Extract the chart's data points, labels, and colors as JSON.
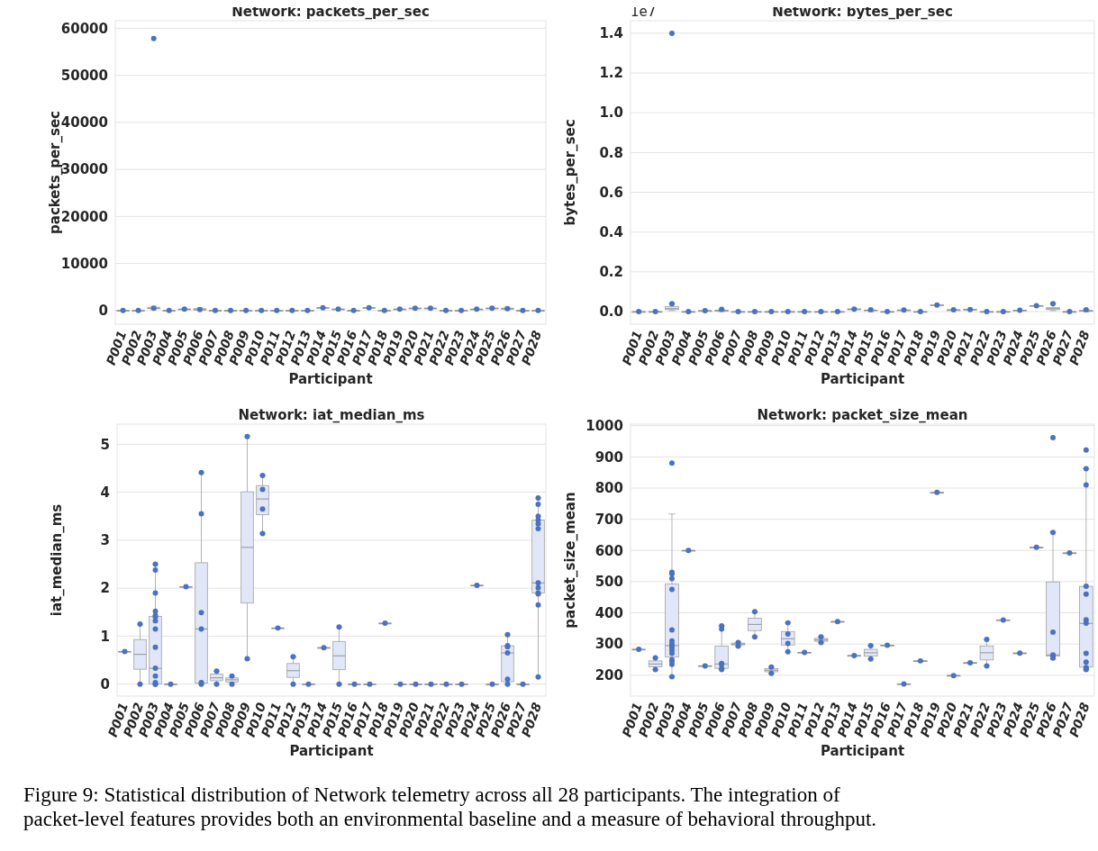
{
  "chart_data": [
    {
      "type": "box",
      "title": "Network: packets_per_sec",
      "xlabel": "Participant",
      "ylabel": "packets_per_sec",
      "categories": [
        "P001",
        "P002",
        "P003",
        "P004",
        "P005",
        "P006",
        "P007",
        "P008",
        "P009",
        "P010",
        "P011",
        "P012",
        "P013",
        "P014",
        "P015",
        "P016",
        "P017",
        "P018",
        "P019",
        "P020",
        "P021",
        "P022",
        "P023",
        "P024",
        "P025",
        "P026",
        "P027",
        "P028"
      ],
      "ylim": [
        -2900,
        61600
      ],
      "yticks": [
        0,
        10000,
        20000,
        30000,
        40000,
        50000,
        60000
      ],
      "grid": "y",
      "color": "#e1e7f8",
      "boxes": [
        {
          "low": 0,
          "q1": 0,
          "median": 0,
          "q3": 0,
          "high": 0
        },
        {
          "low": 0,
          "q1": 0,
          "median": 0,
          "q3": 0,
          "high": 0
        },
        {
          "low": 200,
          "q1": 400,
          "median": 500,
          "q3": 700,
          "high": 900
        },
        {
          "low": 0,
          "q1": 0,
          "median": 0,
          "q3": 0,
          "high": 0
        },
        {
          "low": 300,
          "q1": 300,
          "median": 300,
          "q3": 300,
          "high": 300
        },
        {
          "low": 0,
          "q1": 100,
          "median": 200,
          "q3": 400,
          "high": 600
        },
        {
          "low": 0,
          "q1": 0,
          "median": 0,
          "q3": 0,
          "high": 0
        },
        {
          "low": 0,
          "q1": 0,
          "median": 0,
          "q3": 0,
          "high": 0
        },
        {
          "low": 0,
          "q1": 0,
          "median": 0,
          "q3": 0,
          "high": 0
        },
        {
          "low": 0,
          "q1": 0,
          "median": 0,
          "q3": 0,
          "high": 0
        },
        {
          "low": 0,
          "q1": 0,
          "median": 0,
          "q3": 0,
          "high": 0
        },
        {
          "low": 0,
          "q1": 0,
          "median": 0,
          "q3": 0,
          "high": 0
        },
        {
          "low": 0,
          "q1": 0,
          "median": 0,
          "q3": 0,
          "high": 0
        },
        {
          "low": 600,
          "q1": 600,
          "median": 600,
          "q3": 600,
          "high": 600
        },
        {
          "low": 300,
          "q1": 300,
          "median": 300,
          "q3": 300,
          "high": 300
        },
        {
          "low": 0,
          "q1": 0,
          "median": 0,
          "q3": 0,
          "high": 0
        },
        {
          "low": 600,
          "q1": 600,
          "median": 600,
          "q3": 600,
          "high": 600
        },
        {
          "low": 0,
          "q1": 0,
          "median": 0,
          "q3": 0,
          "high": 0
        },
        {
          "low": 300,
          "q1": 300,
          "median": 300,
          "q3": 300,
          "high": 300
        },
        {
          "low": 500,
          "q1": 500,
          "median": 500,
          "q3": 500,
          "high": 500
        },
        {
          "low": 500,
          "q1": 500,
          "median": 500,
          "q3": 500,
          "high": 500
        },
        {
          "low": 0,
          "q1": 0,
          "median": 0,
          "q3": 0,
          "high": 0
        },
        {
          "low": 0,
          "q1": 0,
          "median": 0,
          "q3": 0,
          "high": 0
        },
        {
          "low": 300,
          "q1": 300,
          "median": 300,
          "q3": 300,
          "high": 300
        },
        {
          "low": 500,
          "q1": 500,
          "median": 500,
          "q3": 500,
          "high": 500
        },
        {
          "low": 100,
          "q1": 300,
          "median": 400,
          "q3": 500,
          "high": 700
        },
        {
          "low": 0,
          "q1": 0,
          "median": 0,
          "q3": 0,
          "high": 0
        },
        {
          "low": 0,
          "q1": 0,
          "median": 0,
          "q3": 0,
          "high": 0
        }
      ],
      "series": [
        {
          "type": "scatter",
          "color": "#4a72c0",
          "x": [
            "P001",
            "P002",
            "P003",
            "P003",
            "P004",
            "P005",
            "P006",
            "P007",
            "P008",
            "P009",
            "P010",
            "P011",
            "P012",
            "P013",
            "P014",
            "P015",
            "P016",
            "P017",
            "P018",
            "P019",
            "P020",
            "P021",
            "P022",
            "P023",
            "P024",
            "P025",
            "P026",
            "P027",
            "P028"
          ],
          "values": [
            0,
            0,
            57800,
            500,
            0,
            300,
            200,
            0,
            0,
            0,
            0,
            0,
            0,
            0,
            600,
            300,
            0,
            600,
            0,
            300,
            500,
            500,
            0,
            0,
            300,
            500,
            400,
            0,
            0
          ]
        }
      ]
    },
    {
      "type": "box",
      "title": "Network: bytes_per_sec",
      "xlabel": "Participant",
      "ylabel": "bytes_per_sec",
      "annotations": [
        "1e7"
      ],
      "categories": [
        "P001",
        "P002",
        "P003",
        "P004",
        "P005",
        "P006",
        "P007",
        "P008",
        "P009",
        "P010",
        "P011",
        "P012",
        "P013",
        "P014",
        "P015",
        "P016",
        "P017",
        "P018",
        "P019",
        "P020",
        "P021",
        "P022",
        "P023",
        "P024",
        "P025",
        "P026",
        "P027",
        "P028"
      ],
      "ylim": [
        -0.063,
        1.463
      ],
      "yticks": [
        {
          "value": 0,
          "label": "0.0"
        },
        {
          "value": 0.2,
          "label": "0.2"
        },
        {
          "value": 0.4,
          "label": "0.4"
        },
        {
          "value": 0.6,
          "label": "0.6"
        },
        {
          "value": 0.8,
          "label": "0.8"
        },
        {
          "value": 1,
          "label": "1.0"
        },
        {
          "value": 1.2,
          "label": "1.2"
        },
        {
          "value": 1.4,
          "label": "1.4"
        }
      ],
      "grid": "y",
      "color": "#e1e7f8",
      "boxes": [
        {
          "low": 0,
          "q1": 0,
          "median": 0,
          "q3": 0,
          "high": 0
        },
        {
          "low": 0,
          "q1": 0,
          "median": 0,
          "q3": 0,
          "high": 0
        },
        {
          "low": 0.005,
          "q1": 0.01,
          "median": 0.015,
          "q3": 0.025,
          "high": 0.04
        },
        {
          "low": 0,
          "q1": 0,
          "median": 0,
          "q3": 0,
          "high": 0
        },
        {
          "low": 0.005,
          "q1": 0.005,
          "median": 0.005,
          "q3": 0.005,
          "high": 0.005
        },
        {
          "low": 0,
          "q1": 0.003,
          "median": 0.005,
          "q3": 0.007,
          "high": 0.012
        },
        {
          "low": 0,
          "q1": 0,
          "median": 0,
          "q3": 0,
          "high": 0
        },
        {
          "low": 0,
          "q1": 0,
          "median": 0,
          "q3": 0,
          "high": 0
        },
        {
          "low": 0,
          "q1": 0,
          "median": 0,
          "q3": 0,
          "high": 0
        },
        {
          "low": 0,
          "q1": 0,
          "median": 0,
          "q3": 0,
          "high": 0
        },
        {
          "low": 0,
          "q1": 0,
          "median": 0,
          "q3": 0,
          "high": 0
        },
        {
          "low": 0,
          "q1": 0,
          "median": 0,
          "q3": 0,
          "high": 0
        },
        {
          "low": 0,
          "q1": 0,
          "median": 0,
          "q3": 0,
          "high": 0
        },
        {
          "low": 0.013,
          "q1": 0.013,
          "median": 0.013,
          "q3": 0.013,
          "high": 0.013
        },
        {
          "low": 0,
          "q1": 0.005,
          "median": 0.007,
          "q3": 0.008,
          "high": 0.01
        },
        {
          "low": 0,
          "q1": 0,
          "median": 0,
          "q3": 0,
          "high": 0
        },
        {
          "low": 0.008,
          "q1": 0.008,
          "median": 0.008,
          "q3": 0.008,
          "high": 0.008
        },
        {
          "low": 0,
          "q1": 0,
          "median": 0,
          "q3": 0,
          "high": 0
        },
        {
          "low": 0.033,
          "q1": 0.033,
          "median": 0.033,
          "q3": 0.033,
          "high": 0.033
        },
        {
          "low": 0.009,
          "q1": 0.009,
          "median": 0.009,
          "q3": 0.009,
          "high": 0.009
        },
        {
          "low": 0.011,
          "q1": 0.011,
          "median": 0.011,
          "q3": 0.011,
          "high": 0.011
        },
        {
          "low": 0,
          "q1": 0,
          "median": 0,
          "q3": 0,
          "high": 0
        },
        {
          "low": 0,
          "q1": 0,
          "median": 0,
          "q3": 0,
          "high": 0
        },
        {
          "low": 0.007,
          "q1": 0.007,
          "median": 0.007,
          "q3": 0.007,
          "high": 0.007
        },
        {
          "low": 0.03,
          "q1": 0.03,
          "median": 0.03,
          "q3": 0.03,
          "high": 0.03
        },
        {
          "low": 0.005,
          "q1": 0.01,
          "median": 0.015,
          "q3": 0.02,
          "high": 0.04
        },
        {
          "low": 0,
          "q1": 0,
          "median": 0,
          "q3": 0,
          "high": 0
        },
        {
          "low": 0,
          "q1": 0.002,
          "median": 0.004,
          "q3": 0.006,
          "high": 0.01
        }
      ],
      "series": [
        {
          "type": "scatter",
          "color": "#4a72c0",
          "x": [
            "P001",
            "P002",
            "P003",
            "P003",
            "P004",
            "P005",
            "P006",
            "P007",
            "P008",
            "P009",
            "P010",
            "P011",
            "P012",
            "P013",
            "P014",
            "P015",
            "P016",
            "P017",
            "P018",
            "P019",
            "P020",
            "P021",
            "P022",
            "P023",
            "P024",
            "P025",
            "P026",
            "P027",
            "P028"
          ],
          "values": [
            0,
            0,
            1.4,
            0.04,
            0,
            0.005,
            0.012,
            0,
            0,
            0,
            0,
            0,
            0,
            0,
            0.013,
            0.01,
            0,
            0.008,
            0,
            0.033,
            0.009,
            0.011,
            0,
            0,
            0.007,
            0.03,
            0.04,
            0,
            0.01
          ]
        }
      ]
    },
    {
      "type": "box",
      "title": "Network: iat_median_ms",
      "xlabel": "Participant",
      "ylabel": "iat_median_ms",
      "categories": [
        "P001",
        "P002",
        "P003",
        "P004",
        "P005",
        "P006",
        "P007",
        "P008",
        "P009",
        "P010",
        "P011",
        "P012",
        "P013",
        "P014",
        "P015",
        "P016",
        "P017",
        "P018",
        "P019",
        "P020",
        "P021",
        "P022",
        "P023",
        "P024",
        "P025",
        "P026",
        "P027",
        "P028"
      ],
      "ylim": [
        -0.25,
        5.42
      ],
      "yticks": [
        0,
        1,
        2,
        3,
        4,
        5
      ],
      "grid": "y",
      "color": "#e1e7f8",
      "boxes": [
        {
          "low": 0.68,
          "q1": 0.68,
          "median": 0.68,
          "q3": 0.68,
          "high": 0.68
        },
        {
          "low": 0,
          "q1": 0.31,
          "median": 0.62,
          "q3": 0.93,
          "high": 1.25
        },
        {
          "low": 0,
          "q1": 0,
          "median": 0.33,
          "q3": 1.41,
          "high": 2.5
        },
        {
          "low": 0,
          "q1": 0,
          "median": 0,
          "q3": 0,
          "high": 0
        },
        {
          "low": 2.03,
          "q1": 2.03,
          "median": 2.03,
          "q3": 2.03,
          "high": 2.03
        },
        {
          "low": 0,
          "q1": 0.02,
          "median": 1.15,
          "q3": 2.53,
          "high": 4.41
        },
        {
          "low": 0,
          "q1": 0.07,
          "median": 0.13,
          "q3": 0.21,
          "high": 0.27
        },
        {
          "low": 0,
          "q1": 0.04,
          "median": 0.09,
          "q3": 0.13,
          "high": 0.17
        },
        {
          "low": 0.53,
          "q1": 1.69,
          "median": 2.85,
          "q3": 4.01,
          "high": 5.16
        },
        {
          "low": 3.14,
          "q1": 3.53,
          "median": 3.86,
          "q3": 4.14,
          "high": 4.35
        },
        {
          "low": 1.17,
          "q1": 1.17,
          "median": 1.17,
          "q3": 1.17,
          "high": 1.17
        },
        {
          "low": 0,
          "q1": 0.14,
          "median": 0.28,
          "q3": 0.43,
          "high": 0.57
        },
        {
          "low": 0,
          "q1": 0,
          "median": 0,
          "q3": 0,
          "high": 0
        },
        {
          "low": 0.76,
          "q1": 0.76,
          "median": 0.76,
          "q3": 0.76,
          "high": 0.76
        },
        {
          "low": 0,
          "q1": 0.3,
          "median": 0.59,
          "q3": 0.89,
          "high": 1.19
        },
        {
          "low": 0,
          "q1": 0,
          "median": 0,
          "q3": 0,
          "high": 0
        },
        {
          "low": 0,
          "q1": 0,
          "median": 0,
          "q3": 0,
          "high": 0
        },
        {
          "low": 1.27,
          "q1": 1.27,
          "median": 1.27,
          "q3": 1.27,
          "high": 1.27
        },
        {
          "low": 0,
          "q1": 0,
          "median": 0,
          "q3": 0,
          "high": 0
        },
        {
          "low": 0,
          "q1": 0,
          "median": 0,
          "q3": 0,
          "high": 0
        },
        {
          "low": 0,
          "q1": 0,
          "median": 0,
          "q3": 0,
          "high": 0
        },
        {
          "low": 0,
          "q1": 0,
          "median": 0,
          "q3": 0,
          "high": 0
        },
        {
          "low": 0,
          "q1": 0,
          "median": 0,
          "q3": 0,
          "high": 0
        },
        {
          "low": 2.06,
          "q1": 2.06,
          "median": 2.06,
          "q3": 2.06,
          "high": 2.06
        },
        {
          "low": 0,
          "q1": 0,
          "median": 0,
          "q3": 0,
          "high": 0
        },
        {
          "low": 0,
          "q1": 0.05,
          "median": 0.65,
          "q3": 0.8,
          "high": 1.03
        },
        {
          "low": 0,
          "q1": 0,
          "median": 0,
          "q3": 0,
          "high": 0
        },
        {
          "low": 0.15,
          "q1": 1.9,
          "median": 2.11,
          "q3": 3.42,
          "high": 3.88
        }
      ],
      "series": [
        {
          "type": "scatter",
          "color": "#4a72c0",
          "x": [
            "P001",
            "P002",
            "P002",
            "P003",
            "P003",
            "P003",
            "P003",
            "P003",
            "P003",
            "P003",
            "P003",
            "P003",
            "P003",
            "P003",
            "P003",
            "P003",
            "P003",
            "P004",
            "P005",
            "P006",
            "P006",
            "P006",
            "P006",
            "P006",
            "P006",
            "P007",
            "P007",
            "P008",
            "P008",
            "P009",
            "P009",
            "P010",
            "P010",
            "P010",
            "P010",
            "P011",
            "P012",
            "P012",
            "P013",
            "P014",
            "P015",
            "P015",
            "P016",
            "P017",
            "P018",
            "P019",
            "P020",
            "P021",
            "P022",
            "P023",
            "P024",
            "P025",
            "P026",
            "P026",
            "P026",
            "P026",
            "P026",
            "P026",
            "P027",
            "P028",
            "P028",
            "P028",
            "P028",
            "P028",
            "P028",
            "P028",
            "P028",
            "P028",
            "P028",
            "P028",
            "P028"
          ],
          "values": [
            0.68,
            1.25,
            0,
            2.5,
            2.38,
            1.9,
            1.52,
            1.43,
            1.4,
            1.32,
            1.15,
            0.77,
            0.33,
            0.17,
            0.03,
            0,
            0,
            0,
            2.03,
            4.41,
            3.55,
            1.49,
            1.15,
            0.03,
            0,
            0.27,
            0,
            0.17,
            0,
            5.16,
            0.53,
            4.35,
            4.06,
            3.65,
            3.14,
            1.17,
            0.57,
            0,
            0,
            0.76,
            1.19,
            0,
            0,
            0,
            1.27,
            0,
            0,
            0,
            0,
            0,
            2.06,
            0,
            1.03,
            0.8,
            0.78,
            0.65,
            0.1,
            0,
            0,
            3.88,
            3.75,
            3.5,
            3.42,
            3.34,
            3.24,
            2.11,
            2.01,
            1.9,
            1.88,
            1.65,
            0.15
          ]
        }
      ]
    },
    {
      "type": "box",
      "title": "Network: packet_size_mean",
      "xlabel": "Participant",
      "ylabel": "packet_size_mean",
      "categories": [
        "P001",
        "P002",
        "P003",
        "P004",
        "P005",
        "P006",
        "P007",
        "P008",
        "P009",
        "P010",
        "P011",
        "P012",
        "P013",
        "P014",
        "P015",
        "P016",
        "P017",
        "P018",
        "P019",
        "P020",
        "P021",
        "P022",
        "P023",
        "P024",
        "P025",
        "P026",
        "P027",
        "P028"
      ],
      "ylim": [
        133,
        1005
      ],
      "yticks": [
        200,
        300,
        400,
        500,
        600,
        700,
        800,
        900,
        1000
      ],
      "grid": "y",
      "color": "#e1e7f8",
      "boxes": [
        {
          "low": 283,
          "q1": 283,
          "median": 283,
          "q3": 283,
          "high": 283
        },
        {
          "low": 218,
          "q1": 227,
          "median": 236,
          "q3": 246,
          "high": 256
        },
        {
          "low": 195,
          "q1": 258,
          "median": 295,
          "q3": 493,
          "high": 717
        },
        {
          "low": 600,
          "q1": 600,
          "median": 600,
          "q3": 600,
          "high": 600
        },
        {
          "low": 230,
          "q1": 230,
          "median": 230,
          "q3": 230,
          "high": 230
        },
        {
          "low": 220,
          "q1": 222,
          "median": 236,
          "q3": 293,
          "high": 358
        },
        {
          "low": 293,
          "q1": 297,
          "median": 300,
          "q3": 303,
          "high": 305
        },
        {
          "low": 323,
          "q1": 343,
          "median": 363,
          "q3": 383,
          "high": 404
        },
        {
          "low": 206,
          "q1": 211,
          "median": 216,
          "q3": 221,
          "high": 226
        },
        {
          "low": 275,
          "q1": 297,
          "median": 317,
          "q3": 340,
          "high": 368
        },
        {
          "low": 273,
          "q1": 273,
          "median": 273,
          "q3": 273,
          "high": 273
        },
        {
          "low": 305,
          "q1": 309,
          "median": 313,
          "q3": 318,
          "high": 323
        },
        {
          "low": 372,
          "q1": 372,
          "median": 372,
          "q3": 372,
          "high": 372
        },
        {
          "low": 263,
          "q1": 263,
          "median": 263,
          "q3": 263,
          "high": 263
        },
        {
          "low": 252,
          "q1": 261,
          "median": 272,
          "q3": 283,
          "high": 295
        },
        {
          "low": 296,
          "q1": 296,
          "median": 296,
          "q3": 296,
          "high": 296
        },
        {
          "low": 172,
          "q1": 172,
          "median": 172,
          "q3": 172,
          "high": 172
        },
        {
          "low": 246,
          "q1": 246,
          "median": 246,
          "q3": 246,
          "high": 246
        },
        {
          "low": 786,
          "q1": 786,
          "median": 786,
          "q3": 786,
          "high": 786
        },
        {
          "low": 199,
          "q1": 199,
          "median": 199,
          "q3": 199,
          "high": 199
        },
        {
          "low": 240,
          "q1": 240,
          "median": 240,
          "q3": 240,
          "high": 240
        },
        {
          "low": 230,
          "q1": 249,
          "median": 272,
          "q3": 294,
          "high": 315
        },
        {
          "low": 377,
          "q1": 377,
          "median": 377,
          "q3": 377,
          "high": 377
        },
        {
          "low": 271,
          "q1": 271,
          "median": 271,
          "q3": 271,
          "high": 271
        },
        {
          "low": 610,
          "q1": 610,
          "median": 610,
          "q3": 610,
          "high": 610
        },
        {
          "low": 252,
          "q1": 261,
          "median": 265,
          "q3": 499,
          "high": 658
        },
        {
          "low": 592,
          "q1": 592,
          "median": 592,
          "q3": 592,
          "high": 592
        },
        {
          "low": 218,
          "q1": 226,
          "median": 366,
          "q3": 485,
          "high": 862
        }
      ],
      "series": [
        {
          "type": "scatter",
          "color": "#4a72c0",
          "x": [
            "P001",
            "P002",
            "P002",
            "P003",
            "P003",
            "P003",
            "P003",
            "P003",
            "P003",
            "P003",
            "P003",
            "P003",
            "P003",
            "P003",
            "P003",
            "P003",
            "P003",
            "P003",
            "P003",
            "P004",
            "P005",
            "P006",
            "P006",
            "P006",
            "P006",
            "P006",
            "P006",
            "P007",
            "P007",
            "P008",
            "P008",
            "P009",
            "P009",
            "P010",
            "P010",
            "P010",
            "P010",
            "P011",
            "P012",
            "P012",
            "P013",
            "P014",
            "P015",
            "P015",
            "P016",
            "P017",
            "P018",
            "P019",
            "P020",
            "P021",
            "P022",
            "P022",
            "P023",
            "P024",
            "P025",
            "P026",
            "P026",
            "P026",
            "P026",
            "P026",
            "P026",
            "P027",
            "P028",
            "P028",
            "P028",
            "P028",
            "P028",
            "P028",
            "P028",
            "P028",
            "P028",
            "P028",
            "P028",
            "P028"
          ],
          "values": [
            283,
            256,
            218,
            880,
            530,
            525,
            510,
            475,
            345,
            310,
            300,
            295,
            290,
            280,
            270,
            250,
            245,
            235,
            195,
            600,
            230,
            358,
            348,
            238,
            235,
            222,
            218,
            305,
            293,
            404,
            323,
            226,
            206,
            368,
            332,
            302,
            275,
            273,
            323,
            305,
            372,
            263,
            295,
            252,
            296,
            172,
            246,
            786,
            199,
            240,
            315,
            230,
            377,
            271,
            610,
            962,
            658,
            338,
            265,
            260,
            255,
            592,
            922,
            862,
            810,
            485,
            460,
            378,
            367,
            270,
            242,
            225,
            220,
            218
          ]
        }
      ]
    },
    {
      "type": "other",
      "annotations": [
        "Figure 9: Statistical distribution of Network telemetry across all 28 participants. The integration of",
        "packet-level features provides both an environmental baseline and a measure of behavioral throughput."
      ]
    }
  ]
}
